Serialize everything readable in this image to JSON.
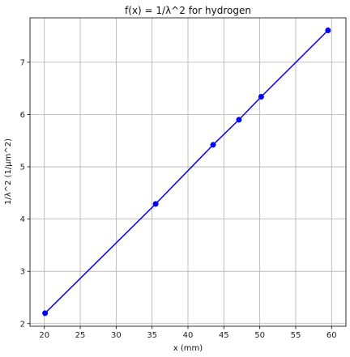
{
  "chart_data": {
    "type": "line",
    "title": "f(x) = 1/λ^2 for hydrogen",
    "xlabel": "x (mm)",
    "ylabel": "1/λ^2 (1/μm^2)",
    "xlim": [
      18,
      62
    ],
    "ylim": [
      1.95,
      7.85
    ],
    "xticks": [
      20,
      25,
      30,
      35,
      40,
      45,
      50,
      55,
      60
    ],
    "yticks": [
      2,
      3,
      4,
      5,
      6,
      7
    ],
    "grid": true,
    "series": [
      {
        "color": "#0000ff",
        "x": [
          20.1,
          35.5,
          43.5,
          47.1,
          50.2,
          59.5
        ],
        "y": [
          2.2,
          4.29,
          5.42,
          5.9,
          6.34,
          7.61
        ]
      }
    ]
  }
}
